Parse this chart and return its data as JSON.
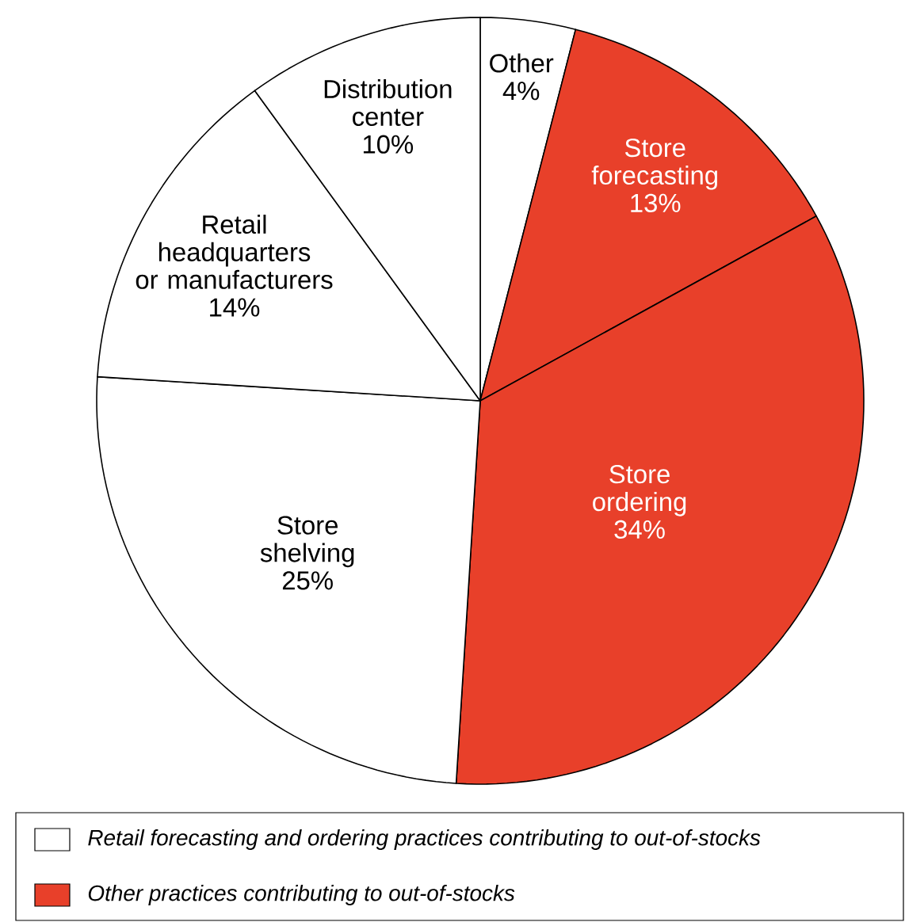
{
  "chart_data": {
    "type": "pie",
    "categories": [
      "Other",
      "Store forecasting",
      "Store ordering",
      "Store shelving",
      "Retail headquarters or manufacturers",
      "Distribution center"
    ],
    "values": [
      4,
      13,
      34,
      25,
      14,
      10
    ],
    "colors": [
      "#ffffff",
      "#e8402a",
      "#e8402a",
      "#ffffff",
      "#ffffff",
      "#ffffff"
    ],
    "value_labels": [
      "4%",
      "13%",
      "34%",
      "25%",
      "14%",
      "10%"
    ],
    "annotations": [
      "Retail forecasting and ordering practices contributing to out-of-stocks",
      "Other practices contributing to out-of-stocks"
    ]
  }
}
